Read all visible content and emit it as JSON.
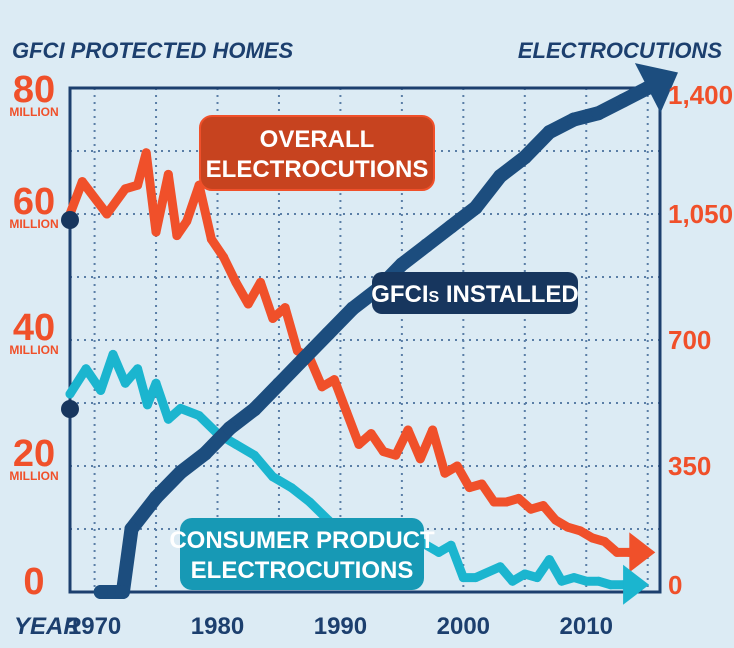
{
  "colors": {
    "background": "#dcebf4",
    "axis": "#1c3f6e",
    "grid": "#5a7ea6",
    "overall": "#f0502a",
    "consumer": "#1bb5cf",
    "gfci": "#1c4d7e",
    "gfci_dark": "#17365e"
  },
  "chart_data": {
    "type": "line",
    "left_axis": {
      "title": "GFCI PROTECTED HOMES",
      "ticks": [
        {
          "value": 0,
          "label": "0",
          "unit": ""
        },
        {
          "value": 20,
          "label": "20",
          "unit": "MILLION"
        },
        {
          "value": 40,
          "label": "40",
          "unit": "MILLION"
        },
        {
          "value": 60,
          "label": "60",
          "unit": "MILLION"
        },
        {
          "value": 80,
          "label": "80",
          "unit": "MILLION"
        }
      ],
      "range": [
        0,
        80
      ]
    },
    "right_axis": {
      "title": "ELECTROCUTIONS",
      "ticks": [
        "0",
        "350",
        "700",
        "1,050",
        "1,400"
      ],
      "tick_values": [
        0,
        350,
        700,
        1050,
        1400
      ],
      "range": [
        0,
        1400
      ]
    },
    "x_axis": {
      "title": "YEAR",
      "ticks": [
        "1970",
        "1980",
        "1990",
        "2000",
        "2010"
      ],
      "tick_values": [
        1970,
        1980,
        1990,
        2000,
        2010
      ],
      "range": [
        1968,
        2016
      ]
    },
    "grid": true,
    "series": [
      {
        "name": "OVERALL ELECTROCUTIONS",
        "label_lines": [
          "OVERALL",
          "ELECTROCUTIONS"
        ],
        "axis": "right",
        "x": [
          1968,
          1969,
          1971,
          1972.5,
          1973.5,
          1974.2,
          1975,
          1976,
          1976.7,
          1977.5,
          1978.5,
          1979.5,
          1980.5,
          1981.5,
          1982.5,
          1983.5,
          1984.5,
          1985.5,
          1986.5,
          1987.5,
          1988.5,
          1989.5,
          1990.5,
          1991.5,
          1992.5,
          1993.5,
          1994.5,
          1995.5,
          1996.5,
          1997.5,
          1998.5,
          1999.5,
          2000.5,
          2001.5,
          2002.5,
          2003.5,
          2004.5,
          2005.5,
          2006.5,
          2007.5,
          2008.5,
          2009.5,
          2010.5,
          2011.5,
          2012.5,
          2013.5
        ],
        "y": [
          1050,
          1140,
          1050,
          1120,
          1130,
          1220,
          1000,
          1160,
          990,
          1030,
          1130,
          980,
          930,
          860,
          800,
          860,
          760,
          790,
          670,
          650,
          570,
          590,
          500,
          410,
          440,
          390,
          380,
          450,
          370,
          450,
          330,
          350,
          290,
          300,
          250,
          250,
          260,
          230,
          240,
          200,
          180,
          170,
          150,
          140,
          110,
          110
        ],
        "arrow": true
      },
      {
        "name": "CONSUMER PRODUCT ELECTROCUTIONS",
        "label_lines": [
          "CONSUMER PRODUCT",
          "ELECTROCUTIONS"
        ],
        "axis": "right",
        "x": [
          1968,
          1969.3,
          1970.5,
          1971.5,
          1972.5,
          1973.5,
          1974.3,
          1975,
          1976,
          1977,
          1978.5,
          1980,
          1981.5,
          1983,
          1984.5,
          1986,
          1987.5,
          1989,
          1990.5,
          1992,
          1993.5,
          1995,
          1996.5,
          1998,
          1999,
          2000,
          2001,
          2003,
          2004,
          2005,
          2006,
          2007,
          2008,
          2009,
          2010,
          2011,
          2012,
          2013
        ],
        "y": [
          550,
          620,
          560,
          660,
          580,
          620,
          520,
          580,
          480,
          510,
          490,
          440,
          410,
          380,
          320,
          290,
          250,
          200,
          150,
          130,
          170,
          160,
          140,
          110,
          130,
          40,
          40,
          70,
          30,
          50,
          40,
          90,
          30,
          40,
          30,
          30,
          20,
          20
        ],
        "arrow": true
      },
      {
        "name": "GFCIs INSTALLED",
        "label_parts": [
          "GFCI",
          "S",
          " INSTALLED"
        ],
        "axis": "left",
        "x": [
          1970.5,
          1972.3,
          1973,
          1975,
          1977,
          1979,
          1981,
          1983,
          1985,
          1987,
          1989,
          1991,
          1993,
          1995,
          1997,
          1999,
          2001,
          2003,
          2005,
          2007,
          2009,
          2011,
          2013,
          2015
        ],
        "y": [
          0,
          0,
          10,
          15,
          19,
          22,
          26,
          29,
          33,
          37,
          41,
          45,
          48,
          52,
          55,
          58,
          61,
          66,
          69,
          73,
          75,
          76,
          78,
          80
        ],
        "arrow": true
      }
    ]
  }
}
